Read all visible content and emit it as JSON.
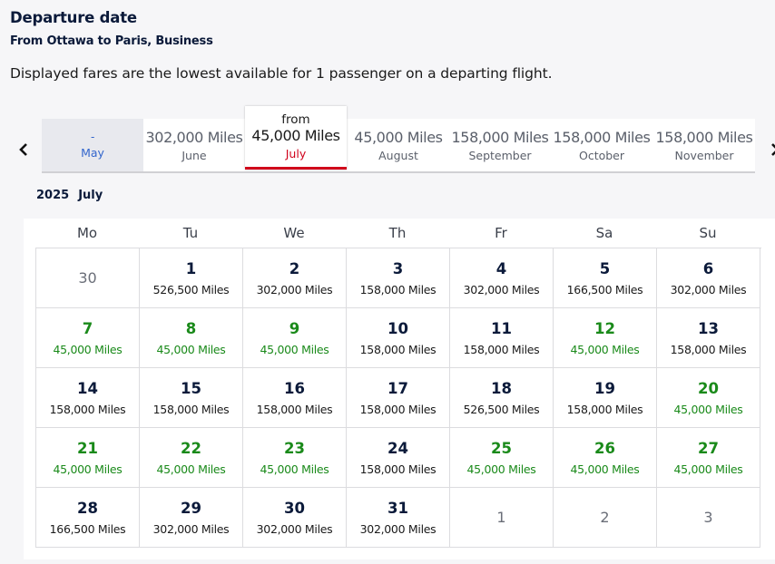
{
  "header": {
    "title": "Departure date",
    "subtitle": "From Ottawa to Paris, Business",
    "note": "Displayed fares are the lowest available for 1 passenger on a departing flight."
  },
  "months": [
    {
      "fare": "-",
      "name": "May"
    },
    {
      "fare": "302,000 Miles",
      "name": "June"
    },
    {
      "from": "from",
      "fare": "45,000 Miles",
      "name": "July"
    },
    {
      "fare": "45,000 Miles",
      "name": "August"
    },
    {
      "fare": "158,000 Miles",
      "name": "September"
    },
    {
      "fare": "158,000 Miles",
      "name": "October"
    },
    {
      "fare": "158,000 Miles",
      "name": "November"
    }
  ],
  "calendar": {
    "year": "2025",
    "month": "July",
    "weekdays": [
      "Mo",
      "Tu",
      "We",
      "Th",
      "Fr",
      "Sa",
      "Su"
    ],
    "weeks": [
      [
        {
          "d": "30",
          "p": "",
          "out": true
        },
        {
          "d": "1",
          "p": "526,500 Miles"
        },
        {
          "d": "2",
          "p": "302,000 Miles"
        },
        {
          "d": "3",
          "p": "158,000 Miles"
        },
        {
          "d": "4",
          "p": "302,000 Miles"
        },
        {
          "d": "5",
          "p": "166,500 Miles"
        },
        {
          "d": "6",
          "p": "302,000 Miles"
        }
      ],
      [
        {
          "d": "7",
          "p": "45,000 Miles",
          "low": true
        },
        {
          "d": "8",
          "p": "45,000 Miles",
          "low": true
        },
        {
          "d": "9",
          "p": "45,000 Miles",
          "low": true
        },
        {
          "d": "10",
          "p": "158,000 Miles"
        },
        {
          "d": "11",
          "p": "158,000 Miles"
        },
        {
          "d": "12",
          "p": "45,000 Miles",
          "low": true
        },
        {
          "d": "13",
          "p": "158,000 Miles"
        }
      ],
      [
        {
          "d": "14",
          "p": "158,000 Miles"
        },
        {
          "d": "15",
          "p": "158,000 Miles"
        },
        {
          "d": "16",
          "p": "158,000 Miles"
        },
        {
          "d": "17",
          "p": "158,000 Miles"
        },
        {
          "d": "18",
          "p": "526,500 Miles"
        },
        {
          "d": "19",
          "p": "158,000 Miles"
        },
        {
          "d": "20",
          "p": "45,000 Miles",
          "low": true
        }
      ],
      [
        {
          "d": "21",
          "p": "45,000 Miles",
          "low": true
        },
        {
          "d": "22",
          "p": "45,000 Miles",
          "low": true
        },
        {
          "d": "23",
          "p": "45,000 Miles",
          "low": true
        },
        {
          "d": "24",
          "p": "158,000 Miles"
        },
        {
          "d": "25",
          "p": "45,000 Miles",
          "low": true
        },
        {
          "d": "26",
          "p": "45,000 Miles",
          "low": true
        },
        {
          "d": "27",
          "p": "45,000 Miles",
          "low": true
        }
      ],
      [
        {
          "d": "28",
          "p": "166,500 Miles"
        },
        {
          "d": "29",
          "p": "302,000 Miles"
        },
        {
          "d": "30",
          "p": "302,000 Miles"
        },
        {
          "d": "31",
          "p": "302,000 Miles"
        },
        {
          "d": "1",
          "p": "",
          "out": true
        },
        {
          "d": "2",
          "p": "",
          "out": true
        },
        {
          "d": "3",
          "p": "",
          "out": true
        }
      ]
    ]
  },
  "icons": {
    "prev": "chevron-left-icon",
    "next": "chevron-right-icon"
  },
  "colors": {
    "low_fare": "#1a8a1a",
    "selected_accent": "#d0021b",
    "link": "#3366cc"
  }
}
